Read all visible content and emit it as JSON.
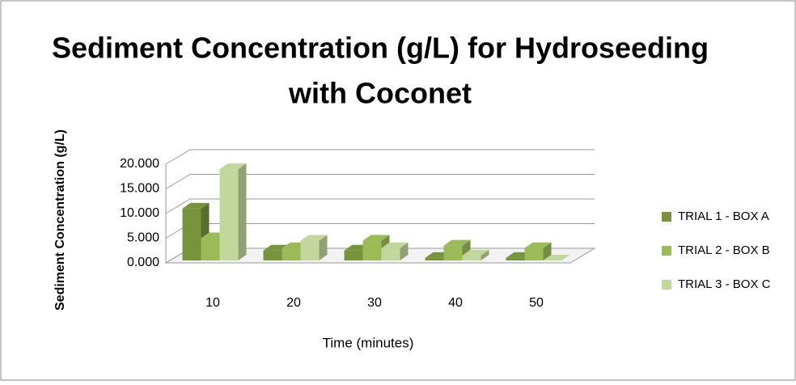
{
  "chart_data": {
    "type": "bar",
    "title": "Sediment Concentration (g/L) for Hydroseeding",
    "subtitle": "with Coconet",
    "x_label": "Time (minutes)",
    "y_label": "Sediment Concentration (g/L)",
    "categories": [
      "10",
      "20",
      "30",
      "40",
      "50"
    ],
    "series": [
      {
        "name": "TRIAL 1 - BOX A",
        "color": "#77933c",
        "values": [
          11,
          2.5,
          2.5,
          1,
          1
        ]
      },
      {
        "name": "TRIAL 2 - BOX B",
        "color": "#9bbb59",
        "values": [
          5,
          3,
          4.5,
          3.5,
          3
        ]
      },
      {
        "name": "TRIAL 3 - BOX C",
        "color": "#c3d69b",
        "values": [
          19,
          4.5,
          3,
          1.5,
          0.5
        ]
      }
    ],
    "ylim": [
      0,
      20
    ],
    "yticks": [
      {
        "value": 0,
        "label": "0.000"
      },
      {
        "value": 5,
        "label": "5.000"
      },
      {
        "value": 10,
        "label": "10.000"
      },
      {
        "value": 15,
        "label": "15.000"
      },
      {
        "value": 20,
        "label": "20.000"
      }
    ],
    "grid": true,
    "legend": "right"
  }
}
